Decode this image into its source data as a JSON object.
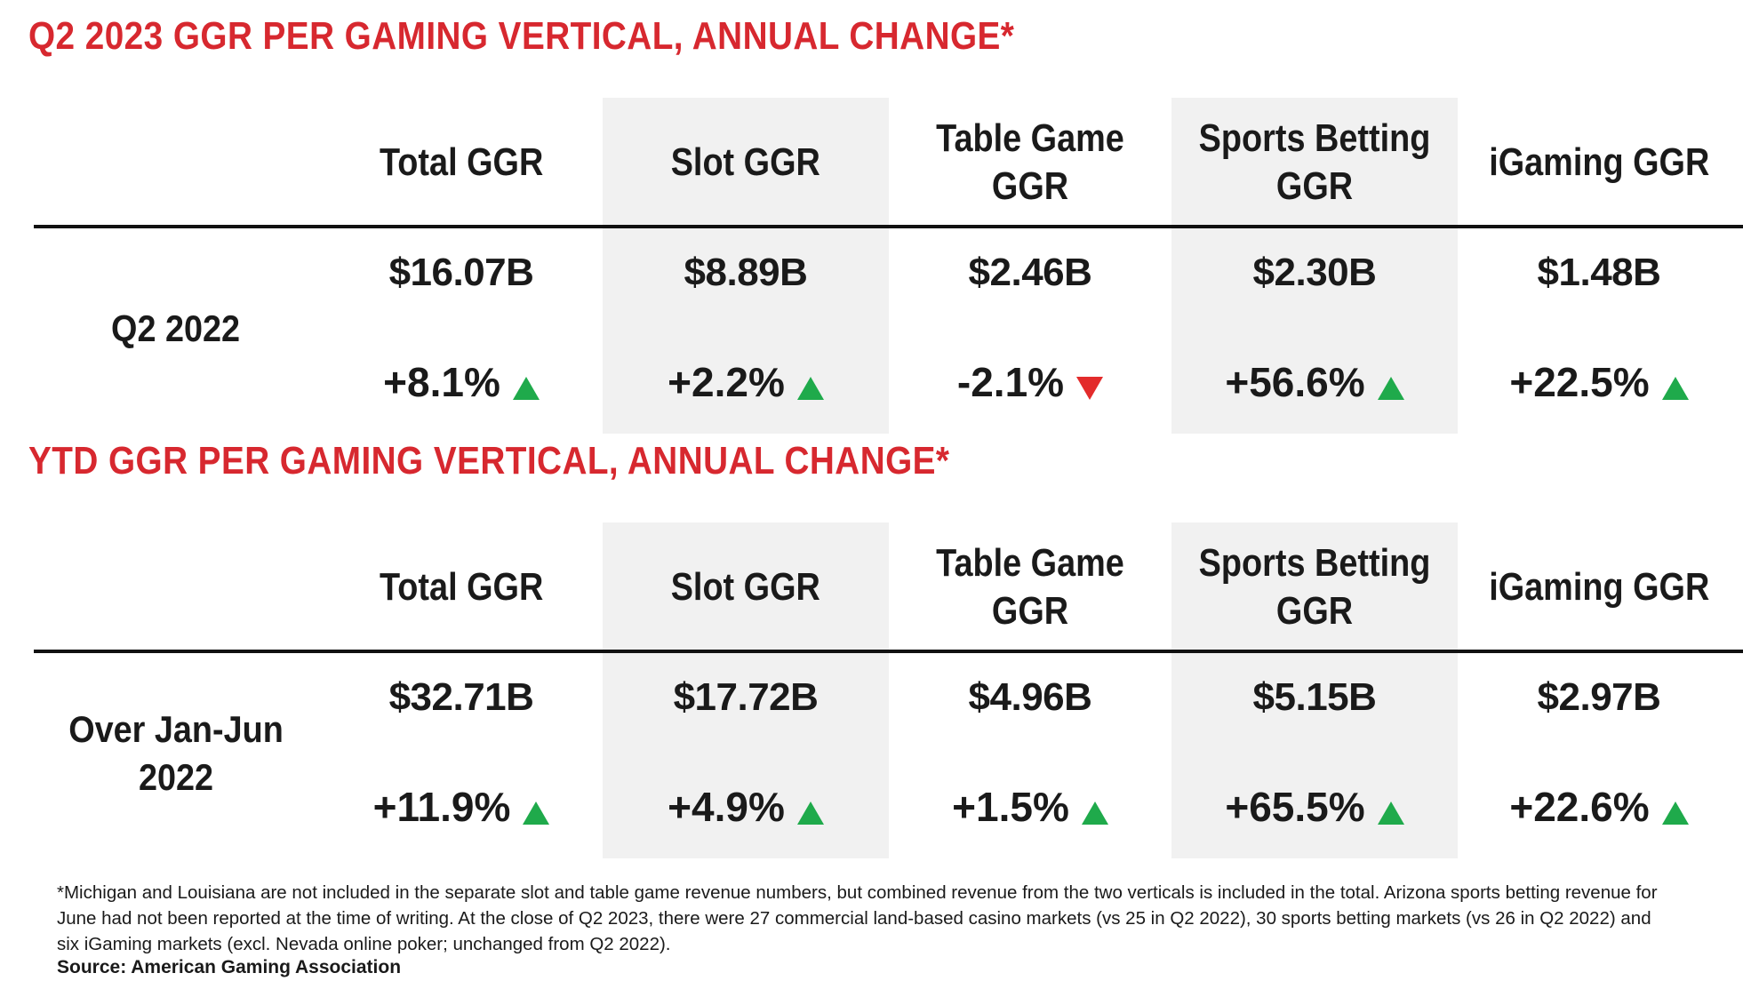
{
  "colors": {
    "title_red": "#d7282f",
    "up_green": "#1faa4b",
    "down_red": "#e32b2b",
    "shade_gray": "#f1f1f1"
  },
  "columns": [
    "Total GGR",
    "Slot GGR",
    "Table Game GGR",
    "Sports Betting GGR",
    "iGaming GGR"
  ],
  "q2": {
    "title": "Q2 2023 GGR PER GAMING VERTICAL, ANNUAL CHANGE*",
    "row_label": "Q2 2022",
    "cells": [
      {
        "value": "$16.07B",
        "change": "+8.1%",
        "direction": "up"
      },
      {
        "value": "$8.89B",
        "change": "+2.2%",
        "direction": "up"
      },
      {
        "value": "$2.46B",
        "change": "-2.1%",
        "direction": "down"
      },
      {
        "value": "$2.30B",
        "change": "+56.6%",
        "direction": "up"
      },
      {
        "value": "$1.48B",
        "change": "+22.5%",
        "direction": "up"
      }
    ]
  },
  "ytd": {
    "title": "YTD GGR PER GAMING VERTICAL, ANNUAL CHANGE*",
    "row_label": "Over Jan-Jun 2022",
    "cells": [
      {
        "value": "$32.71B",
        "change": "+11.9%",
        "direction": "up"
      },
      {
        "value": "$17.72B",
        "change": "+4.9%",
        "direction": "up"
      },
      {
        "value": "$4.96B",
        "change": "+1.5%",
        "direction": "up"
      },
      {
        "value": "$5.15B",
        "change": "+65.5%",
        "direction": "up"
      },
      {
        "value": "$2.97B",
        "change": "+22.6%",
        "direction": "up"
      }
    ]
  },
  "footnote": "*Michigan and Louisiana are not included in the separate slot and table game revenue numbers, but combined revenue from the two verticals is included in the total. Arizona sports betting revenue for June had not been reported at the time of writing. At the close of Q2 2023, there were 27 commercial land-based casino markets (vs 25 in Q2 2022), 30 sports betting markets (vs 26 in Q2 2022) and six iGaming markets (excl. Nevada online poker; unchanged from Q2 2022).",
  "source": "Source: American Gaming Association"
}
